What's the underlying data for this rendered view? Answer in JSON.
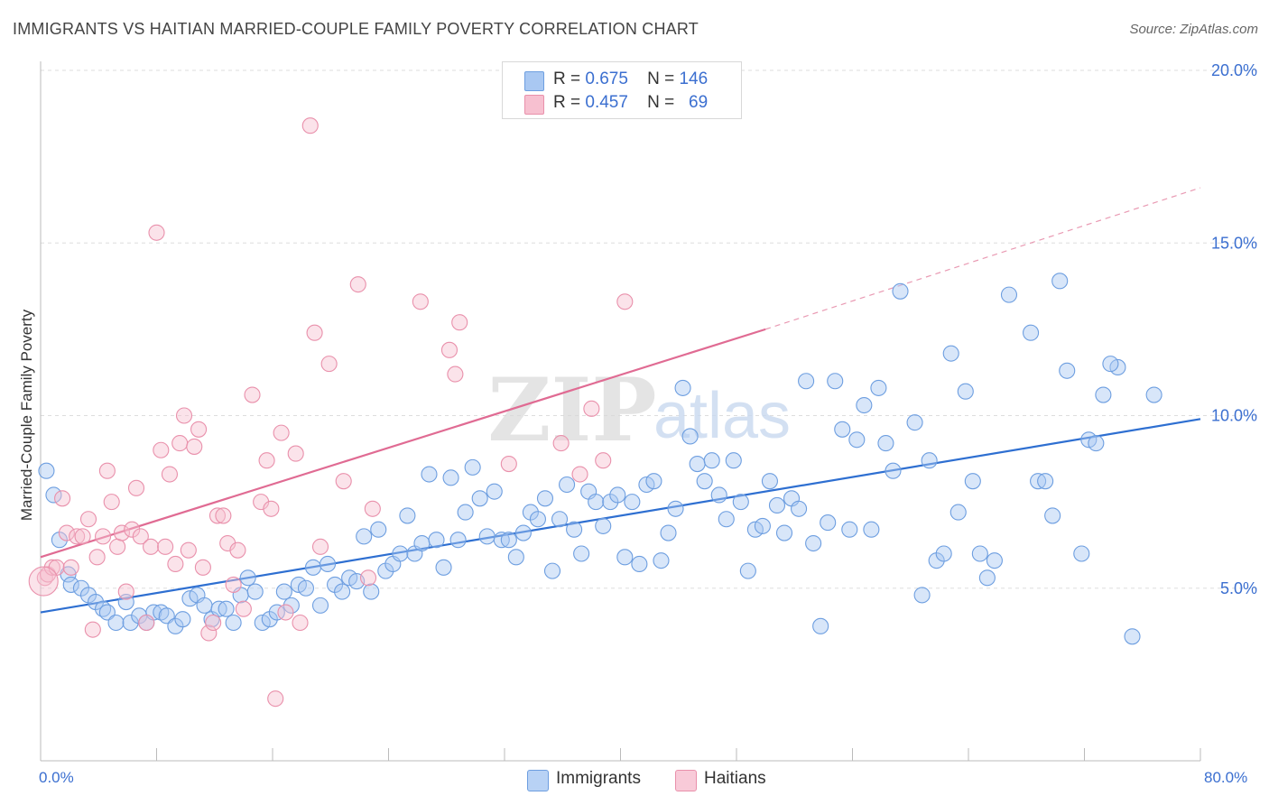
{
  "title": "IMMIGRANTS VS HAITIAN MARRIED-COUPLE FAMILY POVERTY CORRELATION CHART",
  "source": "Source: ZipAtlas.com",
  "watermark": {
    "zip": "ZIP",
    "atlas": "atlas"
  },
  "legend": {
    "r_label": "R =",
    "n_label": "N =",
    "rows": [
      {
        "r": "0.675",
        "n": "146",
        "color": "#a9c8f2",
        "border": "#6d9ee0"
      },
      {
        "r": "0.457",
        "n": "69",
        "color": "#f7c0d0",
        "border": "#e990ab"
      }
    ]
  },
  "bottom_legend": [
    {
      "label": "Immigrants",
      "color": "#b8d2f5",
      "border": "#6d9ee0"
    },
    {
      "label": "Haitians",
      "color": "#f8cad8",
      "border": "#e990ab"
    }
  ],
  "chart_data": {
    "type": "scatter",
    "title": "IMMIGRANTS VS HAITIAN MARRIED-COUPLE FAMILY POVERTY CORRELATION CHART",
    "xlabel": "",
    "ylabel": "Married-Couple Family Poverty",
    "xlim": [
      0,
      80
    ],
    "ylim": [
      0,
      20
    ],
    "x_tick_labels": [
      "0.0%",
      "80.0%"
    ],
    "y_ticks": [
      5,
      10,
      15,
      20
    ],
    "y_tick_labels": [
      "5.0%",
      "10.0%",
      "15.0%",
      "20.0%"
    ],
    "grid": true,
    "series": [
      {
        "name": "Immigrants",
        "color": "#6d9ee0",
        "fill": "rgba(169,200,242,0.45)",
        "trend": {
          "x0": 0,
          "y0": 4.3,
          "x1": 80,
          "y1": 9.9
        },
        "points": [
          [
            0.4,
            8.4
          ],
          [
            0.9,
            7.7
          ],
          [
            1.3,
            6.4
          ],
          [
            1.9,
            5.4
          ],
          [
            2.1,
            5.1
          ],
          [
            2.8,
            5.0
          ],
          [
            3.3,
            4.8
          ],
          [
            3.8,
            4.6
          ],
          [
            4.3,
            4.4
          ],
          [
            4.6,
            4.3
          ],
          [
            5.2,
            4.0
          ],
          [
            5.9,
            4.6
          ],
          [
            6.2,
            4.0
          ],
          [
            6.8,
            4.2
          ],
          [
            7.3,
            4.0
          ],
          [
            7.8,
            4.3
          ],
          [
            8.3,
            4.3
          ],
          [
            8.7,
            4.2
          ],
          [
            9.3,
            3.9
          ],
          [
            9.8,
            4.1
          ],
          [
            10.3,
            4.7
          ],
          [
            10.8,
            4.8
          ],
          [
            11.3,
            4.5
          ],
          [
            11.8,
            4.1
          ],
          [
            12.3,
            4.4
          ],
          [
            12.8,
            4.4
          ],
          [
            13.3,
            4.0
          ],
          [
            13.8,
            4.8
          ],
          [
            14.3,
            5.3
          ],
          [
            14.8,
            4.9
          ],
          [
            15.3,
            4.0
          ],
          [
            15.8,
            4.1
          ],
          [
            16.3,
            4.3
          ],
          [
            16.8,
            4.9
          ],
          [
            17.3,
            4.5
          ],
          [
            17.8,
            5.1
          ],
          [
            18.3,
            5.0
          ],
          [
            18.8,
            5.6
          ],
          [
            19.3,
            4.5
          ],
          [
            19.8,
            5.7
          ],
          [
            20.3,
            5.1
          ],
          [
            20.8,
            4.9
          ],
          [
            21.3,
            5.3
          ],
          [
            21.8,
            5.2
          ],
          [
            22.3,
            6.5
          ],
          [
            22.8,
            4.9
          ],
          [
            23.3,
            6.7
          ],
          [
            23.8,
            5.5
          ],
          [
            24.3,
            5.7
          ],
          [
            24.8,
            6.0
          ],
          [
            25.3,
            7.1
          ],
          [
            25.8,
            6.0
          ],
          [
            26.3,
            6.3
          ],
          [
            26.8,
            8.3
          ],
          [
            27.3,
            6.4
          ],
          [
            27.8,
            5.6
          ],
          [
            28.3,
            8.2
          ],
          [
            28.8,
            6.4
          ],
          [
            29.3,
            7.2
          ],
          [
            29.8,
            8.5
          ],
          [
            30.3,
            7.6
          ],
          [
            30.8,
            6.5
          ],
          [
            31.3,
            7.8
          ],
          [
            31.8,
            6.4
          ],
          [
            32.3,
            6.4
          ],
          [
            32.8,
            5.9
          ],
          [
            33.3,
            6.6
          ],
          [
            33.8,
            7.2
          ],
          [
            34.3,
            7.0
          ],
          [
            34.8,
            7.6
          ],
          [
            35.3,
            5.5
          ],
          [
            35.8,
            7.0
          ],
          [
            36.3,
            8.0
          ],
          [
            36.8,
            6.7
          ],
          [
            37.3,
            6.0
          ],
          [
            37.8,
            7.8
          ],
          [
            38.3,
            7.5
          ],
          [
            38.8,
            6.8
          ],
          [
            39.3,
            7.5
          ],
          [
            39.8,
            7.7
          ],
          [
            40.3,
            5.9
          ],
          [
            40.8,
            7.5
          ],
          [
            41.3,
            5.7
          ],
          [
            41.8,
            8.0
          ],
          [
            42.3,
            8.1
          ],
          [
            42.8,
            5.8
          ],
          [
            43.3,
            6.6
          ],
          [
            43.8,
            7.3
          ],
          [
            44.3,
            10.8
          ],
          [
            44.8,
            9.4
          ],
          [
            45.3,
            8.6
          ],
          [
            45.8,
            8.1
          ],
          [
            46.3,
            8.7
          ],
          [
            46.8,
            7.7
          ],
          [
            47.3,
            7.0
          ],
          [
            47.8,
            8.7
          ],
          [
            48.3,
            7.5
          ],
          [
            48.8,
            5.5
          ],
          [
            49.3,
            6.7
          ],
          [
            49.8,
            6.8
          ],
          [
            50.3,
            8.1
          ],
          [
            50.8,
            7.4
          ],
          [
            51.3,
            6.6
          ],
          [
            51.8,
            7.6
          ],
          [
            52.3,
            7.3
          ],
          [
            52.8,
            11.0
          ],
          [
            53.3,
            6.3
          ],
          [
            53.8,
            3.9
          ],
          [
            54.3,
            6.9
          ],
          [
            54.8,
            11.0
          ],
          [
            55.3,
            9.6
          ],
          [
            55.8,
            6.7
          ],
          [
            56.3,
            9.3
          ],
          [
            56.8,
            10.3
          ],
          [
            57.3,
            6.7
          ],
          [
            57.8,
            10.8
          ],
          [
            58.3,
            9.2
          ],
          [
            58.8,
            8.4
          ],
          [
            59.3,
            13.6
          ],
          [
            60.3,
            9.8
          ],
          [
            60.8,
            4.8
          ],
          [
            61.3,
            8.7
          ],
          [
            61.8,
            5.8
          ],
          [
            62.3,
            6.0
          ],
          [
            62.8,
            11.8
          ],
          [
            63.3,
            7.2
          ],
          [
            63.8,
            10.7
          ],
          [
            64.3,
            8.1
          ],
          [
            64.8,
            6.0
          ],
          [
            65.3,
            5.3
          ],
          [
            65.8,
            5.8
          ],
          [
            66.8,
            13.5
          ],
          [
            68.3,
            12.4
          ],
          [
            68.8,
            8.1
          ],
          [
            69.3,
            8.1
          ],
          [
            69.8,
            7.1
          ],
          [
            70.3,
            13.9
          ],
          [
            70.8,
            11.3
          ],
          [
            71.8,
            6.0
          ],
          [
            72.3,
            9.3
          ],
          [
            72.8,
            9.2
          ],
          [
            73.3,
            10.6
          ],
          [
            74.3,
            11.4
          ],
          [
            73.8,
            11.5
          ],
          [
            75.3,
            3.6
          ],
          [
            76.8,
            10.6
          ]
        ]
      },
      {
        "name": "Haitians",
        "color": "#e990ab",
        "fill": "rgba(247,192,208,0.45)",
        "trend": {
          "x0": 0,
          "y0": 5.9,
          "x1": 50,
          "y1": 12.5,
          "dash_x1": 80,
          "dash_y1": 16.6
        },
        "points": [
          [
            0.3,
            5.3
          ],
          [
            0.5,
            5.4
          ],
          [
            0.8,
            5.6
          ],
          [
            1.1,
            5.6
          ],
          [
            1.5,
            7.6
          ],
          [
            1.8,
            6.6
          ],
          [
            2.1,
            5.6
          ],
          [
            2.5,
            6.5
          ],
          [
            2.9,
            6.5
          ],
          [
            3.3,
            7.0
          ],
          [
            3.6,
            3.8
          ],
          [
            3.9,
            5.9
          ],
          [
            4.3,
            6.5
          ],
          [
            4.6,
            8.4
          ],
          [
            4.9,
            7.5
          ],
          [
            5.3,
            6.2
          ],
          [
            5.6,
            6.6
          ],
          [
            5.9,
            4.9
          ],
          [
            6.3,
            6.7
          ],
          [
            6.6,
            7.9
          ],
          [
            6.9,
            6.5
          ],
          [
            7.3,
            4.0
          ],
          [
            7.6,
            6.2
          ],
          [
            8.0,
            15.3
          ],
          [
            8.3,
            9.0
          ],
          [
            8.6,
            6.2
          ],
          [
            8.9,
            8.3
          ],
          [
            9.3,
            5.7
          ],
          [
            9.6,
            9.2
          ],
          [
            9.9,
            10.0
          ],
          [
            10.2,
            6.1
          ],
          [
            10.6,
            9.1
          ],
          [
            10.9,
            9.6
          ],
          [
            11.2,
            5.6
          ],
          [
            11.6,
            3.7
          ],
          [
            11.9,
            4.0
          ],
          [
            12.2,
            7.1
          ],
          [
            12.6,
            7.1
          ],
          [
            12.9,
            6.3
          ],
          [
            13.3,
            5.1
          ],
          [
            13.6,
            6.1
          ],
          [
            14.0,
            4.4
          ],
          [
            14.6,
            10.6
          ],
          [
            15.2,
            7.5
          ],
          [
            15.6,
            8.7
          ],
          [
            15.9,
            7.3
          ],
          [
            16.2,
            1.8
          ],
          [
            16.6,
            9.5
          ],
          [
            16.9,
            4.3
          ],
          [
            17.6,
            8.9
          ],
          [
            17.9,
            4.0
          ],
          [
            18.6,
            18.4
          ],
          [
            18.9,
            12.4
          ],
          [
            19.3,
            6.2
          ],
          [
            19.9,
            11.5
          ],
          [
            20.9,
            8.1
          ],
          [
            21.9,
            13.8
          ],
          [
            22.6,
            5.3
          ],
          [
            22.9,
            7.3
          ],
          [
            26.2,
            13.3
          ],
          [
            28.2,
            11.9
          ],
          [
            28.6,
            11.2
          ],
          [
            28.9,
            12.7
          ],
          [
            32.3,
            8.6
          ],
          [
            35.9,
            9.2
          ],
          [
            37.2,
            8.3
          ],
          [
            38.0,
            10.2
          ],
          [
            38.8,
            8.7
          ],
          [
            40.3,
            13.3
          ]
        ]
      }
    ]
  }
}
